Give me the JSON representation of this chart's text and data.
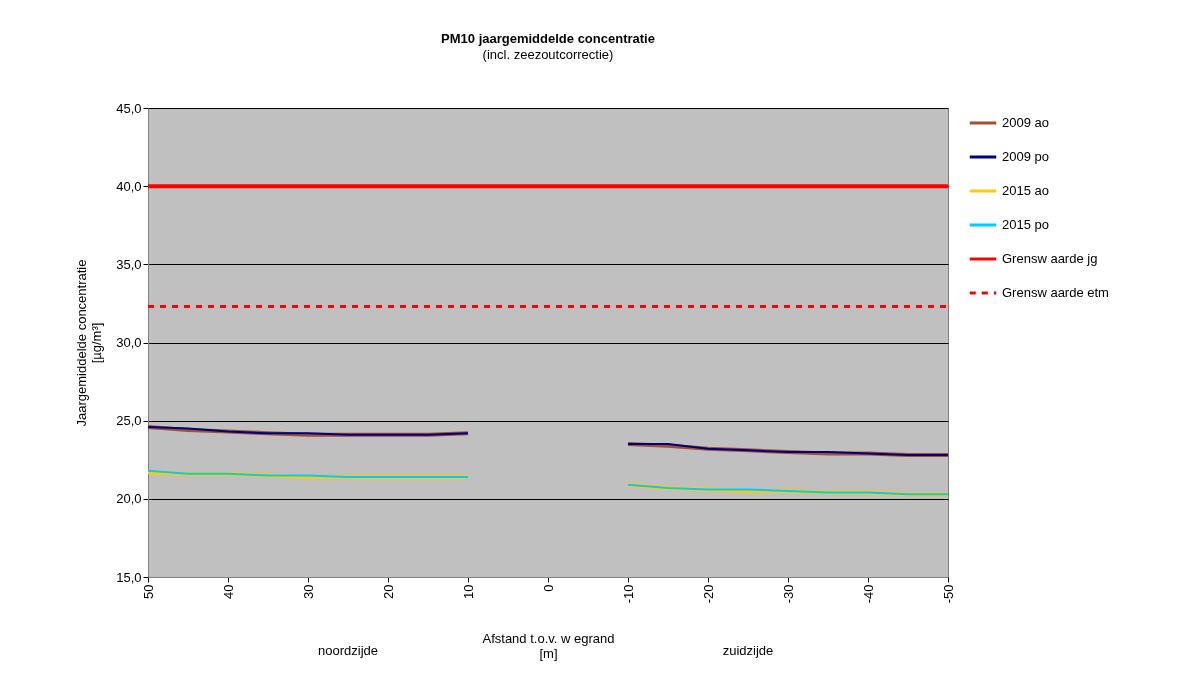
{
  "chart_data": {
    "type": "line",
    "title": "PM10 jaargemiddelde concentratie",
    "subtitle": "(incl. zeezoutcorrectie)",
    "xlabel": "Afstand t.o.v. w egrand\n[m]",
    "ylabel": "Jaargemiddelde concentratie\n[µg/m³]",
    "x": [
      50,
      45,
      40,
      35,
      30,
      25,
      20,
      15,
      10,
      0,
      -10,
      -15,
      -20,
      -25,
      -30,
      -35,
      -40,
      -45,
      -50
    ],
    "series": [
      {
        "name": "2009 ao",
        "color": "#a0522d",
        "values": [
          24.6,
          24.4,
          24.3,
          24.2,
          24.1,
          24.1,
          24.1,
          24.1,
          24.2,
          null,
          23.5,
          23.4,
          23.2,
          23.1,
          23.0,
          22.9,
          22.9,
          22.8,
          22.8
        ]
      },
      {
        "name": "2009 po",
        "color": "#000080",
        "values": [
          24.6,
          24.5,
          24.3,
          24.2,
          24.2,
          24.1,
          24.1,
          24.1,
          24.2,
          null,
          23.5,
          23.5,
          23.2,
          23.1,
          23.0,
          23.0,
          22.9,
          22.8,
          22.8
        ]
      },
      {
        "name": "2015 ao",
        "color": "#ffcc00",
        "values": [
          21.7,
          21.6,
          21.6,
          21.5,
          21.4,
          21.4,
          21.4,
          21.4,
          21.4,
          null,
          20.9,
          20.7,
          20.6,
          20.5,
          20.5,
          20.4,
          20.4,
          20.3,
          20.3
        ]
      },
      {
        "name": "2015 po",
        "color": "#00ccff",
        "values": [
          21.8,
          21.6,
          21.6,
          21.5,
          21.5,
          21.4,
          21.4,
          21.4,
          21.4,
          null,
          20.9,
          20.7,
          20.6,
          20.6,
          20.5,
          20.4,
          20.4,
          20.3,
          20.3
        ]
      }
    ],
    "ref_lines": [
      {
        "axis": "y",
        "value": 40,
        "label": "Grensw aarde jg",
        "color": "#ff0000",
        "line_style": "solid"
      },
      {
        "axis": "y",
        "value": 32.3,
        "label": "Grensw aarde etm",
        "color": "#ff0000",
        "line_style": "dashed"
      }
    ],
    "xlim": [
      50,
      -50
    ],
    "xticks": [
      50,
      40,
      30,
      20,
      10,
      0,
      -10,
      -20,
      -30,
      -40,
      -50
    ],
    "ylim": [
      15,
      45
    ],
    "yticks": [
      {
        "value": 15,
        "label": "15,0"
      },
      {
        "value": 20,
        "label": "20,0"
      },
      {
        "value": 25,
        "label": "25,0"
      },
      {
        "value": 30,
        "label": "30,0"
      },
      {
        "value": 35,
        "label": "35,0"
      },
      {
        "value": 40,
        "label": "40,0"
      },
      {
        "value": 45,
        "label": "45,0"
      }
    ],
    "grid": "y",
    "legend": "right",
    "marker": "none",
    "line_style": "solid",
    "annotations": [
      "noordzijde",
      "zuidzijde"
    ]
  }
}
